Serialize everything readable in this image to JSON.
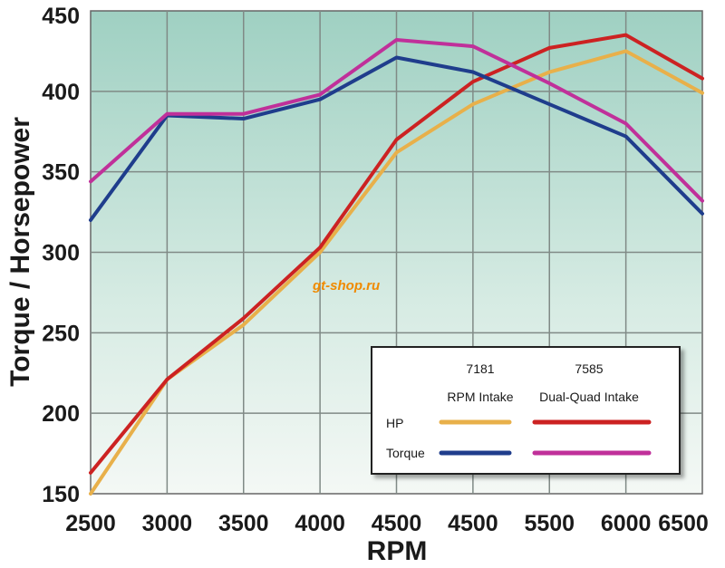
{
  "chart_data": {
    "type": "line",
    "xlabel": "RPM",
    "ylabel": "Torque / Horsepower",
    "categories": [
      "2500",
      "3000",
      "3500",
      "4000",
      "4500",
      "4500",
      "5500",
      "6000",
      "6500"
    ],
    "ylim": [
      150,
      450
    ],
    "yticks": [
      150,
      200,
      250,
      300,
      350,
      400,
      450
    ],
    "grid": true,
    "legend_position": "bottom-right",
    "series": [
      {
        "name": "HP 7181 RPM Intake",
        "color": "#e8b04a",
        "values": [
          150,
          221,
          255,
          300,
          362,
          392,
          412,
          425,
          399
        ]
      },
      {
        "name": "HP 7585 Dual-Quad Intake",
        "color": "#cc2222",
        "values": [
          163,
          221,
          259,
          303,
          370,
          406,
          427,
          435,
          408
        ]
      },
      {
        "name": "Torque 7181 RPM Intake",
        "color": "#1f3d8c",
        "values": [
          320,
          385,
          383,
          395,
          421,
          412,
          392,
          372,
          324
        ]
      },
      {
        "name": "Torque 7585 Dual-Quad Intake",
        "color": "#c0309a",
        "values": [
          344,
          386,
          386,
          398,
          432,
          428,
          405,
          380,
          332
        ]
      }
    ],
    "legend": {
      "col1_line1": "7181",
      "col1_line2": "RPM Intake",
      "col2_line1": "7585",
      "col2_line2": "Dual-Quad Intake",
      "row_hp": "HP",
      "row_torque": "Torque"
    },
    "watermark": "gt-shop.ru"
  }
}
